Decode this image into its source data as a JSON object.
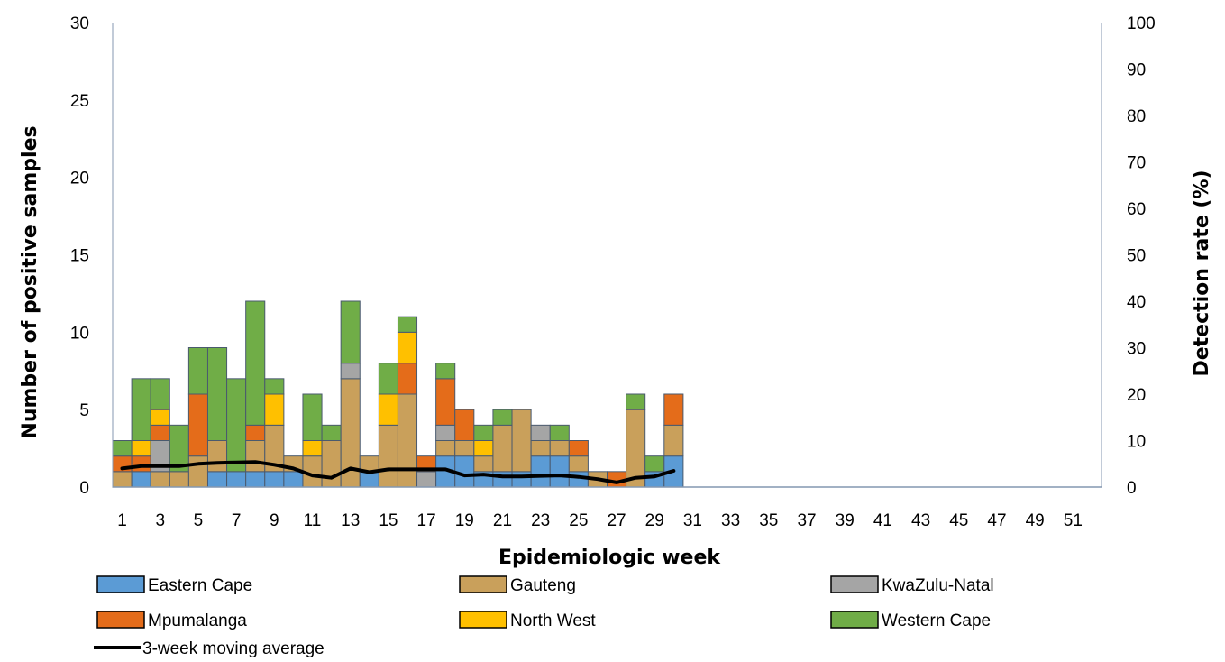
{
  "chart_data": {
    "type": "bar",
    "subtype": "stacked-bar-with-line",
    "title": "",
    "xlabel": "Epidemiologic week",
    "ylabel": "Number of positive samples",
    "y2label": "Detection rate (%)",
    "ylim": [
      0,
      30
    ],
    "y2lim": [
      0,
      100
    ],
    "yticks": [
      "0",
      "5",
      "10",
      "15",
      "20",
      "25",
      "30"
    ],
    "y2ticks": [
      "0",
      "10",
      "20",
      "30",
      "40",
      "50",
      "60",
      "70",
      "80",
      "90",
      "100"
    ],
    "x": [
      1,
      2,
      3,
      4,
      5,
      6,
      7,
      8,
      9,
      10,
      11,
      12,
      13,
      14,
      15,
      16,
      17,
      18,
      19,
      20,
      21,
      22,
      23,
      24,
      25,
      26,
      27,
      28,
      29,
      30,
      31,
      32,
      33,
      34,
      35,
      36,
      37,
      38,
      39,
      40,
      41,
      42,
      43,
      44,
      45,
      46,
      47,
      48,
      49,
      50,
      51,
      52
    ],
    "xtick_labels": [
      "1",
      "3",
      "5",
      "7",
      "9",
      "11",
      "13",
      "15",
      "17",
      "19",
      "21",
      "23",
      "25",
      "27",
      "29",
      "31",
      "33",
      "35",
      "37",
      "39",
      "41",
      "43",
      "45",
      "47",
      "49",
      "51"
    ],
    "grid": false,
    "legend_position": "bottom",
    "series": [
      {
        "name": "Eastern Cape",
        "color": "#5b9bd5",
        "values": [
          0,
          1,
          0,
          0,
          0,
          1,
          1,
          1,
          1,
          1,
          0,
          0,
          0,
          1,
          0,
          0,
          0,
          2,
          2,
          1,
          1,
          1,
          2,
          2,
          1,
          0,
          0,
          0,
          1,
          2,
          0,
          0,
          0,
          0,
          0,
          0,
          0,
          0,
          0,
          0,
          0,
          0,
          0,
          0,
          0,
          0,
          0,
          0,
          0,
          0,
          0,
          0
        ]
      },
      {
        "name": "Gauteng",
        "color": "#c9a05b",
        "values": [
          1,
          0,
          1,
          1,
          2,
          2,
          0,
          2,
          3,
          1,
          2,
          3,
          7,
          1,
          4,
          6,
          0,
          1,
          1,
          1,
          3,
          4,
          1,
          1,
          1,
          1,
          0,
          5,
          0,
          2,
          0,
          0,
          0,
          0,
          0,
          0,
          0,
          0,
          0,
          0,
          0,
          0,
          0,
          0,
          0,
          0,
          0,
          0,
          0,
          0,
          0,
          0
        ]
      },
      {
        "name": "KwaZulu-Natal",
        "color": "#a5a5a5",
        "values": [
          0,
          0,
          2,
          0,
          0,
          0,
          0,
          0,
          0,
          0,
          0,
          0,
          1,
          0,
          0,
          0,
          1,
          1,
          0,
          0,
          0,
          0,
          1,
          0,
          0,
          0,
          0,
          0,
          0,
          0,
          0,
          0,
          0,
          0,
          0,
          0,
          0,
          0,
          0,
          0,
          0,
          0,
          0,
          0,
          0,
          0,
          0,
          0,
          0,
          0,
          0,
          0
        ]
      },
      {
        "name": "Mpumalanga",
        "color": "#e46c1a",
        "values": [
          1,
          1,
          1,
          0,
          4,
          0,
          0,
          1,
          0,
          0,
          0,
          0,
          0,
          0,
          0,
          2,
          1,
          3,
          2,
          0,
          0,
          0,
          0,
          0,
          1,
          0,
          1,
          0,
          0,
          2,
          0,
          0,
          0,
          0,
          0,
          0,
          0,
          0,
          0,
          0,
          0,
          0,
          0,
          0,
          0,
          0,
          0,
          0,
          0,
          0,
          0,
          0
        ]
      },
      {
        "name": "North West",
        "color": "#ffc000",
        "values": [
          0,
          1,
          1,
          0,
          0,
          0,
          0,
          0,
          2,
          0,
          1,
          0,
          0,
          0,
          2,
          2,
          0,
          0,
          0,
          1,
          0,
          0,
          0,
          0,
          0,
          0,
          0,
          0,
          0,
          0,
          0,
          0,
          0,
          0,
          0,
          0,
          0,
          0,
          0,
          0,
          0,
          0,
          0,
          0,
          0,
          0,
          0,
          0,
          0,
          0,
          0,
          0
        ]
      },
      {
        "name": "Western Cape",
        "color": "#70ad47",
        "values": [
          1,
          4,
          2,
          3,
          3,
          6,
          6,
          8,
          1,
          0,
          3,
          1,
          4,
          0,
          2,
          1,
          0,
          1,
          0,
          1,
          1,
          0,
          0,
          1,
          0,
          0,
          0,
          1,
          1,
          0,
          0,
          0,
          0,
          0,
          0,
          0,
          0,
          0,
          0,
          0,
          0,
          0,
          0,
          0,
          0,
          0,
          0,
          0,
          0,
          0,
          0,
          0
        ]
      }
    ],
    "line_series": {
      "name": "3-week moving average",
      "axis": "right",
      "color": "#000000",
      "values": [
        4,
        4.5,
        4.5,
        4.5,
        5,
        5.2,
        5.3,
        5.4,
        4.8,
        4,
        2.5,
        2,
        4,
        3.2,
        3.8,
        3.8,
        3.8,
        3.8,
        2.5,
        2.7,
        2.3,
        2.3,
        2.4,
        2.5,
        2.2,
        1.7,
        1,
        2,
        2.3,
        3.5
      ]
    }
  }
}
